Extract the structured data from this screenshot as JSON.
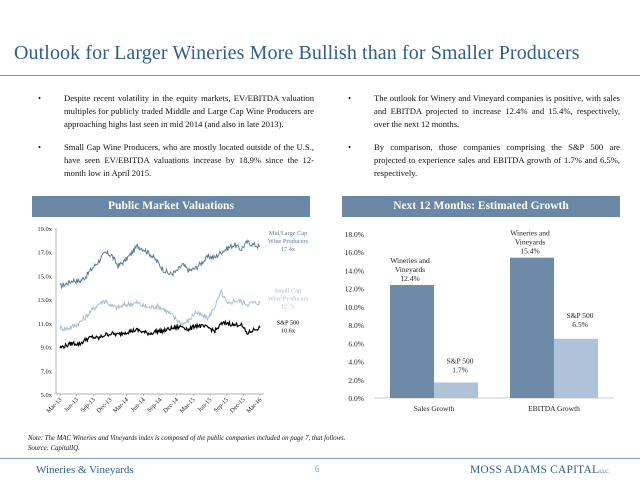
{
  "page": {
    "title": "Outlook for Larger Wineries More Bullish than for Smaller Producers",
    "footer_left": "Wineries & Vineyards",
    "page_number": "6",
    "footer_brand": "MOSS ADAMS CAPITAL",
    "footer_brand_suffix": "LLC",
    "note": "Note: The MAC Wineries and Vineyards index is composed of the public companies included on page 7, that follows.",
    "source": "Source: CapitalIQ."
  },
  "bullets_left": [
    "Despite recent volatility in the equity markets, EV/EBITDA valuation multiples for publicly traded Middle and Large Cap Wine Producers are approaching highs last seen in mid 2014 (and also in late 2013).",
    "Small Cap Wine Producers, who are mostly located outside of the U.S., have seen EV/EBITDA valuations increase by 18.9% since the 12-month low in April 2015."
  ],
  "bullets_right": [
    "The outlook for Winery and Vineyard companies is positive, with sales and EBITDA projected to increase 12.4% and 15.4%, respectively, over the next 12 months.",
    "By comparison, those companies comprising the S&P 500 are projected to experience sales and EBITDA growth of 1.7% and 6.5%, respectively."
  ],
  "bullet_symbol": "•",
  "panels": {
    "left_title": "Public Market Valuations",
    "right_title": "Next 12 Months: Estimated Growth"
  },
  "colors": {
    "title": "#2f5f8a",
    "header_bg": "#6a88a6",
    "mid_large": "#5b7b9a",
    "small_cap": "#a9bfd6",
    "sp500": "#000000",
    "bar_wineries": "#6d8aa6",
    "bar_sp500": "#aec3d9"
  },
  "chart_data": [
    {
      "type": "line",
      "title": "Public Market Valuations",
      "xlabel": "",
      "ylabel": "",
      "x_ticks": [
        "Mar-13",
        "Jun-13",
        "Sep-13",
        "Dec-13",
        "Mar-14",
        "Jun-14",
        "Sep-14",
        "Dec-14",
        "Mar-15",
        "Jun-15",
        "Sep-15",
        "Dec-15",
        "Mar-16"
      ],
      "y_ticks": [
        "5.0x",
        "7.0x",
        "9.0x",
        "11.0x",
        "13.0x",
        "15.0x",
        "17.0x",
        "19.0x"
      ],
      "ylim": [
        5,
        19
      ],
      "grid": false,
      "series": [
        {
          "name": "Mid/Large Cap Wine Producers",
          "end_label": "17.4x",
          "values": [
            14.1,
            14.3,
            14.6,
            14.5,
            14.9,
            15.6,
            16.2,
            16.9,
            16.7,
            15.8,
            16.2,
            16.8,
            17.5,
            17.2,
            16.8,
            16.2,
            15.5,
            15.1,
            15.3,
            15.9,
            15.4,
            15.6,
            16.1,
            16.6,
            16.5,
            17.0,
            17.3,
            17.6,
            17.2,
            17.8,
            17.6,
            17.4
          ]
        },
        {
          "name": "Small Cap Wine Producers",
          "end_label": "12.7x",
          "values": [
            10.6,
            10.5,
            10.7,
            11.0,
            11.5,
            12.1,
            12.6,
            12.9,
            12.4,
            12.3,
            12.5,
            12.6,
            12.7,
            12.4,
            12.3,
            12.4,
            12.2,
            11.8,
            11.3,
            10.9,
            11.2,
            11.9,
            11.6,
            11.4,
            12.4,
            13.6,
            12.5,
            12.9,
            12.8,
            12.6,
            12.7,
            12.7
          ]
        },
        {
          "name": "S&P 500",
          "end_label": "10.6x",
          "values": [
            8.9,
            9.1,
            9.3,
            9.2,
            9.6,
            9.8,
            9.7,
            10.0,
            10.1,
            10.0,
            10.2,
            10.3,
            10.4,
            10.2,
            10.1,
            10.3,
            10.3,
            10.5,
            10.6,
            10.7,
            10.4,
            10.8,
            10.7,
            10.6,
            10.3,
            10.9,
            11.0,
            10.8,
            10.9,
            10.1,
            10.4,
            10.6
          ]
        }
      ]
    },
    {
      "type": "bar",
      "title": "Next 12 Months: Estimated Growth",
      "categories": [
        "Sales Growth",
        "EBITDA Growth"
      ],
      "y_ticks": [
        "0.0%",
        "2.0%",
        "4.0%",
        "6.0%",
        "8.0%",
        "10.0%",
        "12.0%",
        "14.0%",
        "16.0%",
        "18.0%"
      ],
      "ylim": [
        0,
        18
      ],
      "series": [
        {
          "name": "Wineries and Vineyards",
          "values": [
            12.4,
            15.4
          ],
          "value_labels": [
            "12.4%",
            "15.4%"
          ],
          "label_lines": [
            "Wineries and",
            "Vineyards"
          ]
        },
        {
          "name": "S&P 500",
          "values": [
            1.7,
            6.5
          ],
          "value_labels": [
            "1.7%",
            "6.5%"
          ],
          "label_lines": [
            "S&P 500"
          ]
        }
      ]
    }
  ]
}
